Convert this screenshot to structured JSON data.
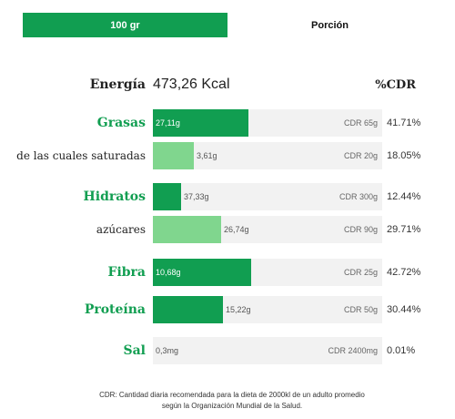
{
  "tabs": [
    {
      "label": "100 gr",
      "active": true
    },
    {
      "label": "Porción",
      "active": false
    }
  ],
  "energy": {
    "label": "Energía",
    "value": "473,26 Kcal"
  },
  "cdr_header": "%CDR",
  "colors": {
    "primary": "#119e51",
    "light": "#80d68e",
    "track": "#f2f2f2"
  },
  "nutrients": [
    {
      "label": "Grasas",
      "style": "main",
      "amount": "27,11g",
      "cdr": "CDR 65g",
      "pct": "41.71%",
      "fraction": 0.4171,
      "shade": "dark"
    },
    {
      "label": "de las cuales saturadas",
      "style": "sub",
      "amount": "3,61g",
      "cdr": "CDR 20g",
      "pct": "18.05%",
      "fraction": 0.1805,
      "shade": "light"
    },
    {
      "label": "Hidratos",
      "style": "main",
      "amount": "37,33g",
      "cdr": "CDR 300g",
      "pct": "12.44%",
      "fraction": 0.1244,
      "shade": "dark"
    },
    {
      "label": "azúcares",
      "style": "sub",
      "amount": "26,74g",
      "cdr": "CDR 90g",
      "pct": "29.71%",
      "fraction": 0.2971,
      "shade": "light"
    },
    {
      "label": "Fibra",
      "style": "main",
      "amount": "10,68g",
      "cdr": "CDR 25g",
      "pct": "42.72%",
      "fraction": 0.4272,
      "shade": "dark"
    },
    {
      "label": "Proteína",
      "style": "main",
      "amount": "15,22g",
      "cdr": "CDR 50g",
      "pct": "30.44%",
      "fraction": 0.3044,
      "shade": "dark"
    },
    {
      "label": "Sal",
      "style": "main",
      "amount": "0,3mg",
      "cdr": "CDR 2400mg",
      "pct": "0.01%",
      "fraction": 0.0001,
      "shade": "dark"
    }
  ],
  "footnote": {
    "line1": "CDR: Cantidad diaria recomendada para la dieta de 2000kl de un adulto promedio",
    "line2": "según la Organización Mundial de la Salud."
  }
}
